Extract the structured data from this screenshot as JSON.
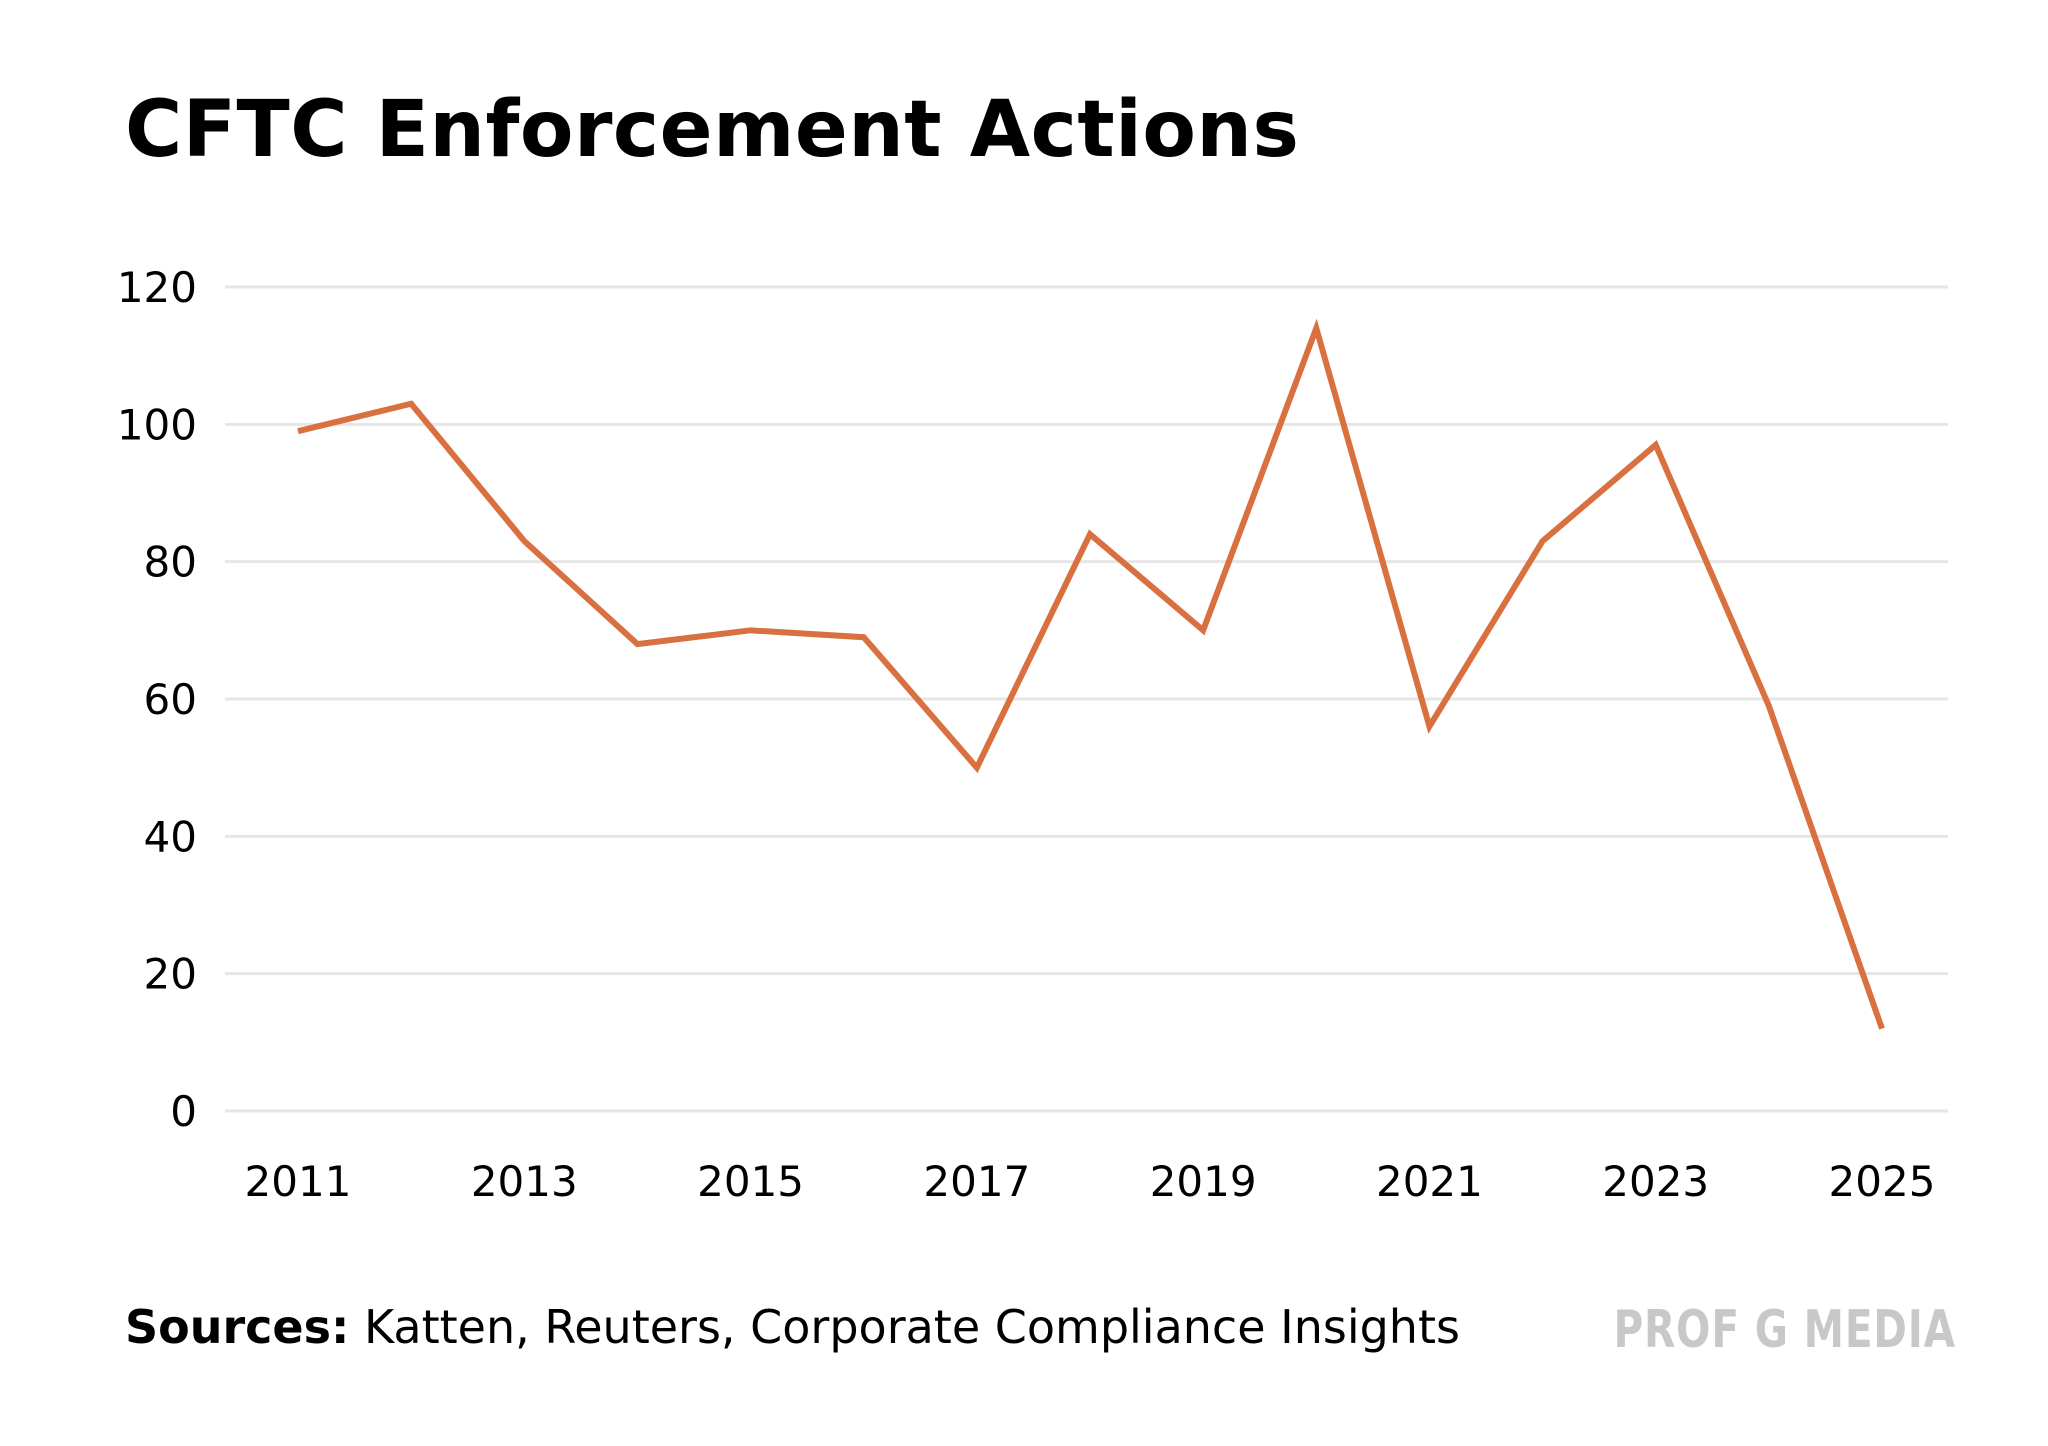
{
  "title": "CFTC Enforcement Actions",
  "footer": {
    "sources_label": "Sources:",
    "sources_text": " Katten, Reuters, Corporate Compliance Insights",
    "brand": "PROF G MEDIA"
  },
  "colors": {
    "line": "#d9703f",
    "grid": "#e6e6e6",
    "brand": "#c8c8c8"
  },
  "chart_data": {
    "type": "line",
    "title": "CFTC Enforcement Actions",
    "xlabel": "",
    "ylabel": "",
    "x": [
      2011,
      2012,
      2013,
      2014,
      2015,
      2016,
      2017,
      2018,
      2019,
      2020,
      2021,
      2022,
      2023,
      2024,
      2025
    ],
    "series": [
      {
        "values": [
          99,
          103,
          83,
          68,
          70,
          69,
          50,
          84,
          70,
          114,
          56,
          83,
          97,
          59,
          12
        ]
      }
    ],
    "xticks": [
      "2011",
      "2013",
      "2015",
      "2017",
      "2019",
      "2021",
      "2023",
      "2025"
    ],
    "yticks": [
      "0",
      "20",
      "40",
      "60",
      "80",
      "100",
      "120"
    ],
    "ylim": [
      0,
      120
    ],
    "grid": true,
    "legend": "none"
  }
}
